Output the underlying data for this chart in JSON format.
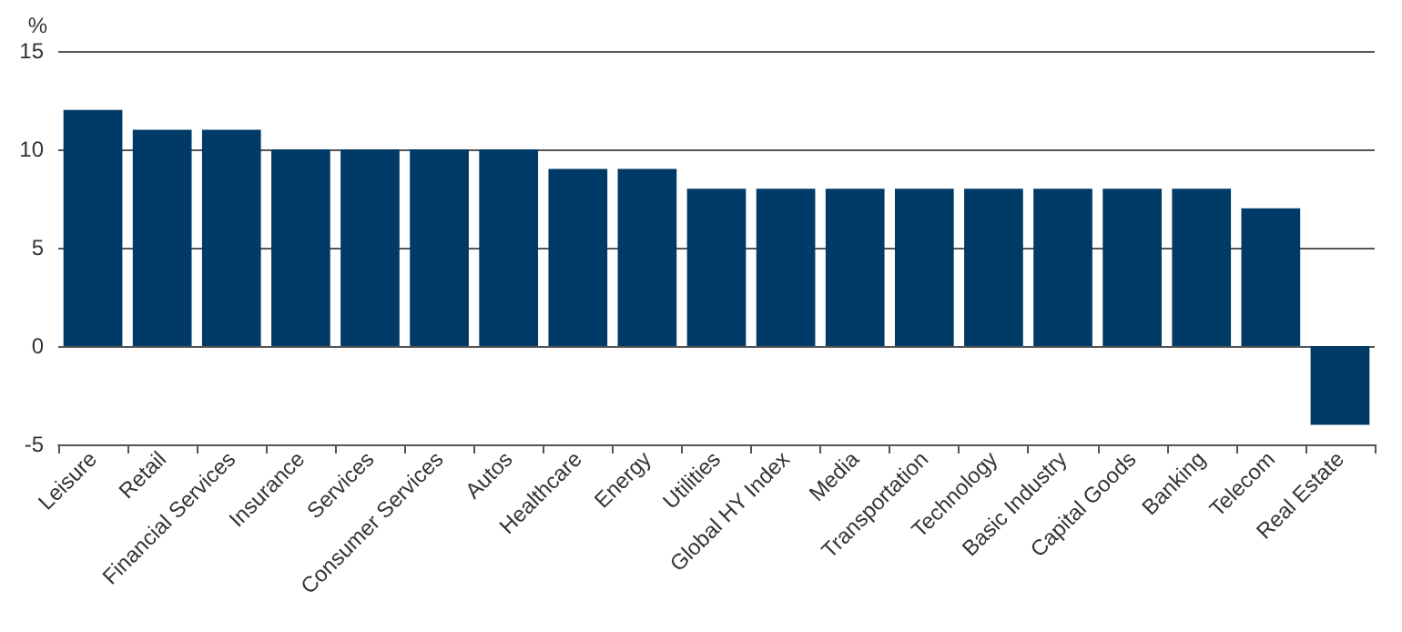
{
  "chart_data": {
    "type": "bar",
    "ylabel": "%",
    "categories": [
      "Leisure",
      "Retail",
      "Financial Services",
      "Insurance",
      "Services",
      "Consumer Services",
      "Autos",
      "Healthcare",
      "Energy",
      "Utilities",
      "Global HY Index",
      "Media",
      "Transportation",
      "Technology",
      "Basic Industry",
      "Capital Goods",
      "Banking",
      "Telecom",
      "Real Estate"
    ],
    "values": [
      12,
      11,
      11,
      10,
      10,
      10,
      10,
      9,
      9,
      8,
      8,
      8,
      8,
      8,
      8,
      8,
      8,
      7,
      -4
    ],
    "color": "#003a66",
    "ylim": [
      -5,
      15
    ],
    "yticks": [
      -5,
      0,
      5,
      10,
      15
    ],
    "grid": "y"
  }
}
